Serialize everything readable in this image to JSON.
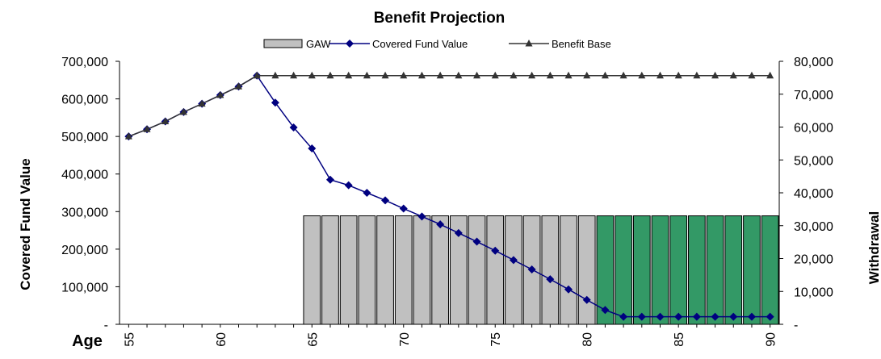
{
  "chart_data": {
    "type": "bar+line",
    "title": "Benefit Projection",
    "x_title": "Age",
    "left_axis": {
      "label": "Covered Fund Value",
      "ylim": [
        0,
        700000
      ],
      "tick_labels": [
        "-",
        "100,000",
        "200,000",
        "300,000",
        "400,000",
        "500,000",
        "600,000",
        "700,000"
      ]
    },
    "right_axis": {
      "label": "Withdrawal",
      "ylim": [
        0,
        80000
      ],
      "tick_labels": [
        "-",
        "10,000",
        "20,000",
        "30,000",
        "40,000",
        "50,000",
        "60,000",
        "70,000",
        "80,000"
      ]
    },
    "x_tick_labels": [
      "55",
      "60",
      "65",
      "70",
      "75",
      "80",
      "85",
      "90"
    ],
    "ages": [
      55,
      56,
      57,
      58,
      59,
      60,
      61,
      62,
      63,
      64,
      65,
      66,
      67,
      68,
      69,
      70,
      71,
      72,
      73,
      74,
      75,
      76,
      77,
      78,
      79,
      80,
      81,
      82,
      83,
      84,
      85,
      86,
      87,
      88,
      89,
      90
    ],
    "legend": [
      "GAW",
      "Covered Fund Value",
      "Benefit Base"
    ],
    "legend_position": "top-center",
    "series": [
      {
        "name": "GAW",
        "type": "bar",
        "axis": "right",
        "color_grey": "#c0c0c0",
        "color_green": "#339966",
        "green_from_age": 81,
        "values": [
          null,
          null,
          null,
          null,
          null,
          null,
          null,
          null,
          null,
          null,
          33000,
          33000,
          33000,
          33000,
          33000,
          33000,
          33000,
          33000,
          33000,
          33000,
          33000,
          33000,
          33000,
          33000,
          33000,
          33000,
          33000,
          33000,
          33000,
          33000,
          33000,
          33000,
          33000,
          33000,
          33000,
          33000
        ]
      },
      {
        "name": "Covered Fund Value",
        "type": "line",
        "axis": "left",
        "color": "#000080",
        "marker": "diamond",
        "values": [
          500000,
          519000,
          540000,
          565000,
          587000,
          610000,
          633000,
          662000,
          590000,
          524000,
          468000,
          385000,
          370000,
          350000,
          330000,
          308000,
          287000,
          266000,
          243000,
          220000,
          196000,
          171000,
          146000,
          120000,
          93000,
          65000,
          38000,
          20000,
          20000,
          20000,
          20000,
          20000,
          20000,
          20000,
          20000,
          20000
        ]
      },
      {
        "name": "Benefit Base",
        "type": "line",
        "axis": "left",
        "color": "#333333",
        "marker": "triangle",
        "values": [
          500000,
          519000,
          540000,
          565000,
          587000,
          610000,
          633000,
          662000,
          662000,
          662000,
          662000,
          662000,
          662000,
          662000,
          662000,
          662000,
          662000,
          662000,
          662000,
          662000,
          662000,
          662000,
          662000,
          662000,
          662000,
          662000,
          662000,
          662000,
          662000,
          662000,
          662000,
          662000,
          662000,
          662000,
          662000,
          662000
        ]
      }
    ]
  }
}
